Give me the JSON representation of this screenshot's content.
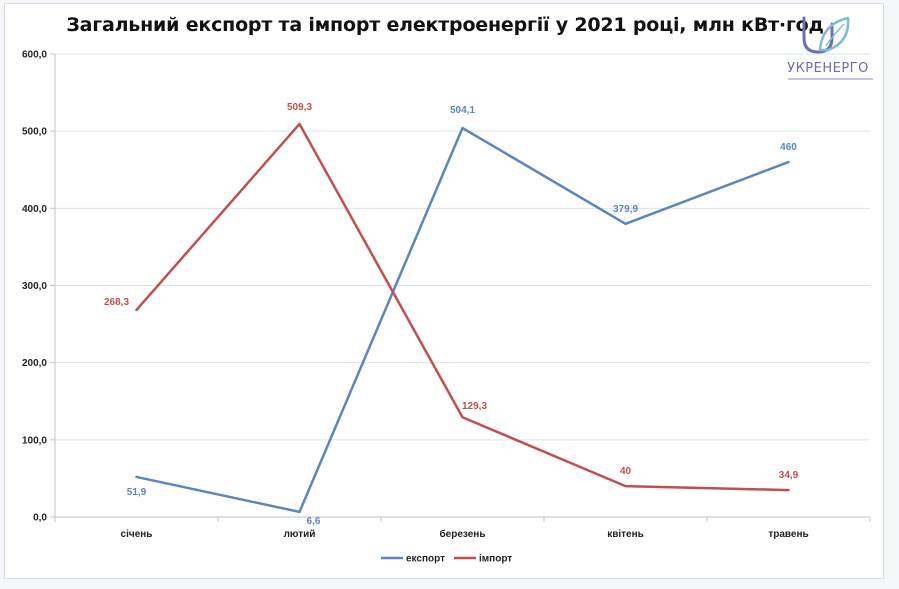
{
  "chart_data": {
    "type": "line",
    "title": "Загальний експорт та імпорт електроенергії у 2021 році, млн кВт·год",
    "categories": [
      "січень",
      "лютий",
      "березень",
      "квітень",
      "травень"
    ],
    "series": [
      {
        "name": "експорт",
        "color": "#5b86bf",
        "values": [
          51.9,
          6.6,
          504.1,
          379.9,
          460
        ],
        "labels": [
          "51,9",
          "6,6",
          "504,1",
          "379,9",
          "460"
        ]
      },
      {
        "name": "імпорт",
        "color": "#c0504d",
        "values": [
          268.3,
          509.3,
          129.3,
          40,
          34.9
        ],
        "labels": [
          "268,3",
          "509,3",
          "129,3",
          "40",
          "34,9"
        ]
      }
    ],
    "ylim": [
      0,
      600
    ],
    "yticks": [
      "0,0",
      "100,0",
      "200,0",
      "300,0",
      "400,0",
      "500,0",
      "600,0"
    ],
    "grid": true,
    "legend_position": "bottom"
  },
  "logo": {
    "name": "УКРЕНЕРГО",
    "color": "#6a6fb0"
  }
}
